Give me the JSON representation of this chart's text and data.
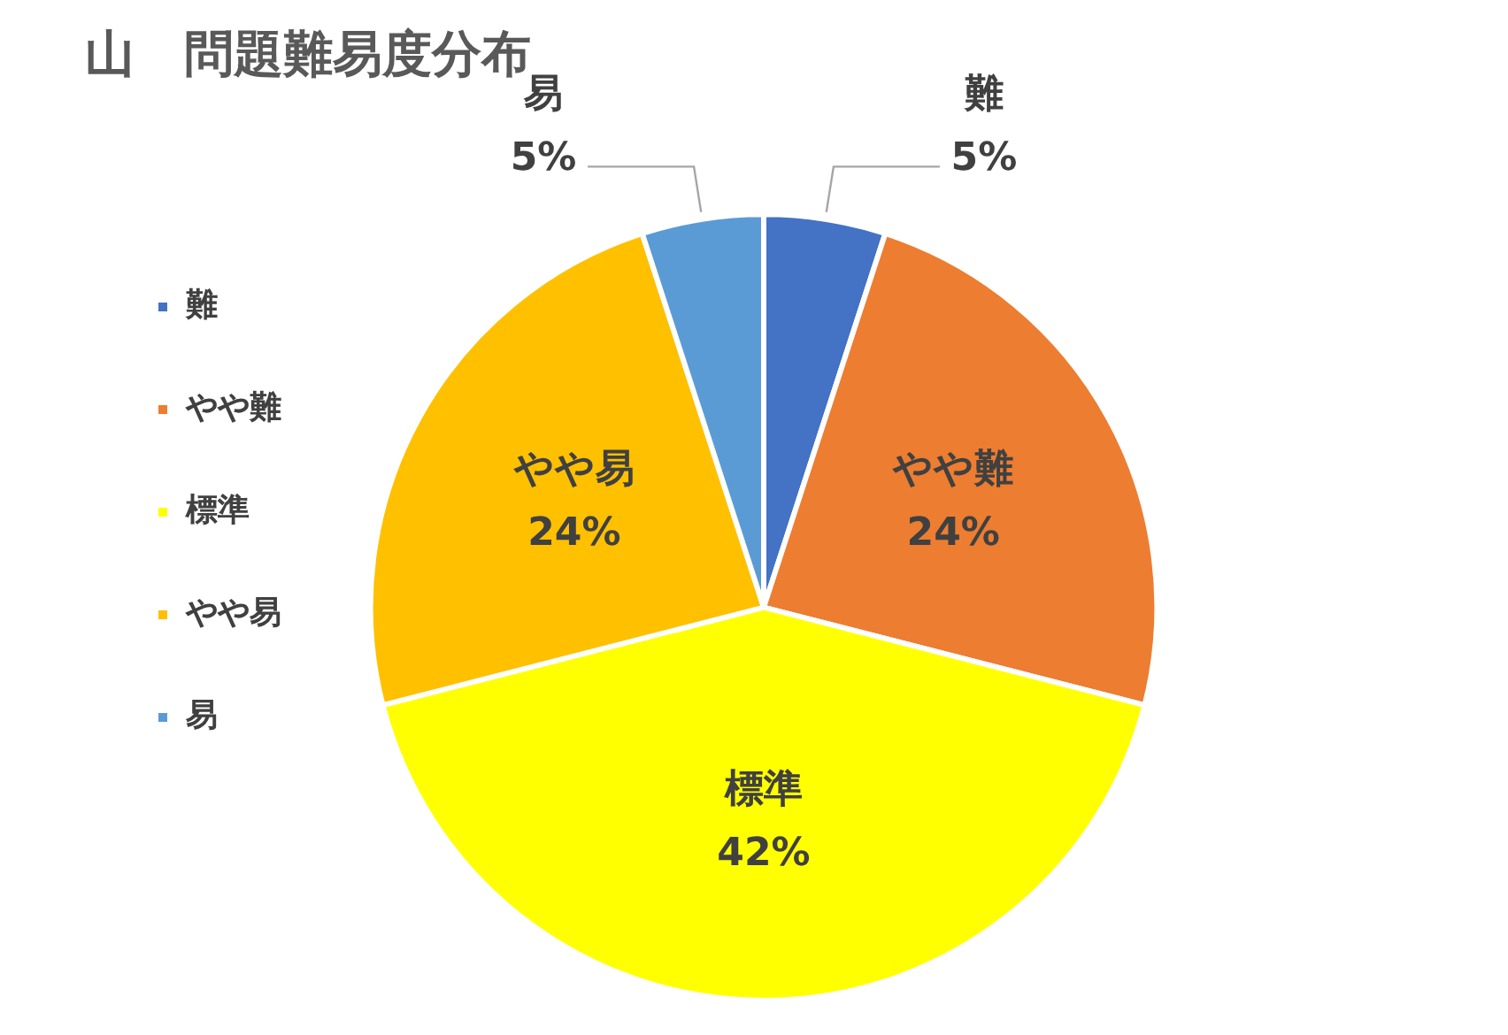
{
  "chart_data": {
    "type": "pie",
    "title": "山　問題難易度分布",
    "categories": [
      "難",
      "やや難",
      "標準",
      "やや易",
      "易"
    ],
    "values": [
      5,
      24,
      42,
      24,
      5
    ],
    "colors": [
      "#4472c4",
      "#ed7d31",
      "#ffff00",
      "#ffc000",
      "#5b9bd5"
    ],
    "value_labels": [
      "5%",
      "24%",
      "42%",
      "24%",
      "5%"
    ],
    "legend": "left"
  }
}
